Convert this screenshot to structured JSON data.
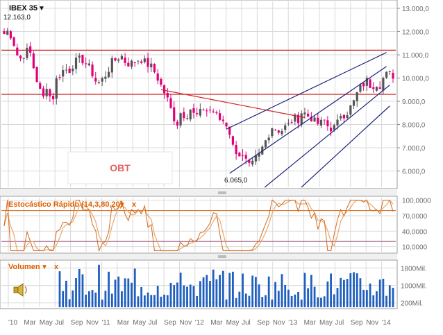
{
  "colors": {
    "grid": "#d9d9d9",
    "axis_text": "#6b6b6b",
    "candle_up": "#555555",
    "candle_down": "#e0007a",
    "red_line": "#cc2222",
    "navy_line": "#1a237e",
    "stoch_k": "#d2691e",
    "stoch_d": "#e8a86a",
    "stoch_band": "#8a3a6a",
    "volume": "#1f5fbf",
    "title_orange": "#e06000",
    "panel_border": "#9a9a9a"
  },
  "price_panel": {
    "title": "IBEX 35",
    "title_arrow": "▼",
    "last_value": "12.163,0",
    "low_label": "6.065,0",
    "watermark": "OBT",
    "y_ticks": [
      "13.000,0",
      "12.000,0",
      "11.000,0",
      "10.000,0",
      "9.000,0",
      "8.000,0",
      "7.000,0",
      "6.000,0"
    ]
  },
  "stochastic_panel": {
    "title": "Estocástico Rápido (14,3,80,20)",
    "title_arrow": "▼",
    "close_label": "x",
    "y_ticks": [
      "100,0000",
      "70,0000",
      "40,0000",
      "10,0000"
    ]
  },
  "volume_panel": {
    "title": "Volumen",
    "title_arrow": "▼",
    "close_label": "x",
    "speaker_icon": "speaker-icon",
    "y_ticks": [
      "1800Mil.",
      "1000Mil.",
      "200Mil."
    ]
  },
  "x_axis": {
    "labels": [
      "'10",
      "Mar",
      "May",
      "Jul",
      "Sep",
      "Nov",
      "'11",
      "Mar",
      "May",
      "Jul",
      "Sep",
      "Nov",
      "'12",
      "Mar",
      "May",
      "Jul",
      "Sep",
      "Nov",
      "'13",
      "Mar",
      "May",
      "Jul",
      "Sep",
      "Nov",
      "'14"
    ]
  },
  "chart_data": {
    "type": "candlestick",
    "period": "2010-01 to 2014-01",
    "x_labels": [
      "'10",
      "Mar",
      "May",
      "Jul",
      "Sep",
      "Nov",
      "'11",
      "Mar",
      "May",
      "Jul",
      "Sep",
      "Nov",
      "'12",
      "Mar",
      "May",
      "Jul",
      "Sep",
      "Nov",
      "'13",
      "Mar",
      "May",
      "Jul",
      "Sep",
      "Nov",
      "'14"
    ],
    "price_anchors": [
      [
        0,
        11900
      ],
      [
        1,
        12050
      ],
      [
        2,
        11650
      ],
      [
        3,
        11000
      ],
      [
        4,
        10800
      ],
      [
        5,
        11200
      ],
      [
        6,
        11100
      ],
      [
        8,
        10300
      ],
      [
        9,
        9600
      ],
      [
        10,
        9100
      ],
      [
        11,
        9800
      ],
      [
        12,
        8800
      ],
      [
        13,
        9900
      ],
      [
        14,
        10200
      ],
      [
        15,
        10400
      ],
      [
        16,
        10300
      ],
      [
        17,
        10600
      ],
      [
        18,
        10800
      ],
      [
        19,
        10800
      ],
      [
        20,
        10600
      ],
      [
        21,
        10400
      ],
      [
        22,
        9900
      ],
      [
        23,
        9800
      ],
      [
        24,
        10000
      ],
      [
        25,
        10300
      ],
      [
        26,
        10700
      ],
      [
        27,
        10800
      ],
      [
        28,
        11000
      ],
      [
        29,
        10700
      ],
      [
        30,
        10600
      ],
      [
        31,
        10700
      ],
      [
        32,
        10800
      ],
      [
        33,
        10800
      ],
      [
        34,
        10600
      ],
      [
        35,
        10500
      ],
      [
        36,
        10200
      ],
      [
        37,
        9800
      ],
      [
        38,
        9400
      ],
      [
        39,
        9000
      ],
      [
        40,
        8400
      ],
      [
        41,
        8000
      ],
      [
        42,
        8600
      ],
      [
        43,
        8300
      ],
      [
        44,
        8700
      ],
      [
        45,
        8400
      ],
      [
        46,
        8400
      ],
      [
        47,
        8700
      ],
      [
        48,
        8600
      ],
      [
        49,
        8650
      ],
      [
        50,
        8400
      ],
      [
        51,
        8200
      ],
      [
        52,
        8150
      ],
      [
        53,
        7800
      ],
      [
        54,
        7000
      ],
      [
        55,
        6800
      ],
      [
        56,
        6600
      ],
      [
        57,
        6400
      ],
      [
        58,
        6100
      ],
      [
        59,
        6500
      ],
      [
        60,
        6700
      ],
      [
        61,
        7100
      ],
      [
        62,
        7500
      ],
      [
        63,
        7900
      ],
      [
        64,
        7800
      ],
      [
        65,
        7700
      ],
      [
        66,
        7900
      ],
      [
        67,
        8000
      ],
      [
        68,
        8300
      ],
      [
        69,
        8200
      ],
      [
        70,
        8600
      ],
      [
        71,
        8400
      ],
      [
        72,
        8300
      ],
      [
        73,
        8100
      ],
      [
        74,
        8000
      ],
      [
        75,
        8200
      ],
      [
        76,
        7900
      ],
      [
        77,
        7800
      ],
      [
        78,
        8000
      ],
      [
        79,
        8500
      ],
      [
        80,
        8400
      ],
      [
        81,
        8700
      ],
      [
        82,
        9000
      ],
      [
        83,
        9500
      ],
      [
        84,
        9700
      ],
      [
        85,
        9900
      ],
      [
        86,
        9600
      ],
      [
        87,
        9800
      ],
      [
        88,
        9700
      ],
      [
        89,
        10100
      ],
      [
        90,
        10200
      ],
      [
        91,
        10100
      ]
    ],
    "price_ylim": [
      5300,
      13300
    ],
    "support_resistance_lines": [
      11200,
      9300
    ],
    "trend_lines": [
      {
        "color": "red",
        "from": [
          48,
          9500
        ],
        "to": [
          92,
          8300
        ]
      },
      {
        "color": "navy",
        "from": [
          68,
          7800
        ],
        "to": [
          117,
          11100
        ]
      },
      {
        "color": "navy",
        "from": [
          69,
          5900
        ],
        "to": [
          117,
          10500
        ]
      },
      {
        "color": "navy",
        "from": [
          78,
          5100
        ],
        "to": [
          118,
          9700
        ]
      },
      {
        "color": "navy",
        "from": [
          84,
          4400
        ],
        "to": [
          118,
          8800
        ]
      }
    ],
    "stochastic": {
      "upper_band": 80,
      "lower_band": 20,
      "ylim": [
        0,
        105
      ]
    },
    "volume": {
      "ylim_mil": [
        0,
        2100
      ],
      "unit": "Mil."
    }
  }
}
